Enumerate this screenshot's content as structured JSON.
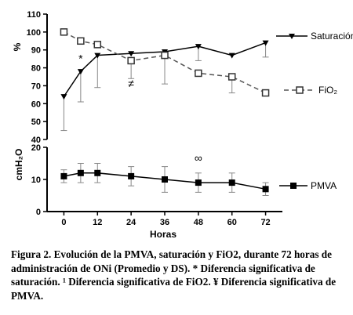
{
  "chart_data": [
    {
      "type": "line",
      "ylabel": "%",
      "ylim": [
        40,
        110
      ],
      "yticks": [
        40,
        50,
        60,
        70,
        80,
        90,
        100,
        110
      ],
      "xticks": [
        0,
        12,
        24,
        36,
        48,
        60,
        72
      ],
      "xlim": [
        -6,
        78
      ],
      "grid": false,
      "legend_position": "right",
      "series": [
        {
          "name": "Saturación",
          "marker": "triangle-down",
          "line": "solid",
          "x": [
            0,
            6,
            12,
            24,
            36,
            48,
            60,
            72
          ],
          "y": [
            64,
            78,
            87,
            88,
            89,
            92,
            87,
            94
          ],
          "err": [
            19,
            17,
            18,
            0,
            0,
            8,
            0,
            8
          ],
          "err_direction": "down"
        },
        {
          "name": "FiO₂",
          "marker": "square-open",
          "line": "dashed",
          "x": [
            0,
            6,
            12,
            24,
            36,
            48,
            60,
            72
          ],
          "y": [
            100,
            95,
            93,
            84,
            87,
            77,
            75,
            66
          ],
          "err": [
            0,
            0,
            0,
            10,
            16,
            0,
            9,
            0
          ],
          "err_direction": "down"
        }
      ],
      "annotations": [
        {
          "text": "*",
          "x": 6,
          "y": 83
        },
        {
          "text": "≠",
          "x": 24,
          "y": 69
        }
      ]
    },
    {
      "type": "line",
      "ylabel": "cmH₂O",
      "ylim": [
        0,
        20
      ],
      "yticks": [
        0,
        10,
        20
      ],
      "xticks": [
        0,
        12,
        24,
        36,
        48,
        60,
        72
      ],
      "xlim": [
        -6,
        78
      ],
      "xlabel": "Horas",
      "grid": false,
      "legend_position": "right",
      "series": [
        {
          "name": "PMVA",
          "marker": "square-filled",
          "line": "solid",
          "x": [
            0,
            6,
            12,
            24,
            36,
            48,
            60,
            72
          ],
          "y": [
            11,
            12,
            12,
            11,
            10,
            9,
            9,
            7
          ],
          "err": [
            2,
            3,
            3,
            3,
            4,
            3,
            3,
            2
          ],
          "err_direction": "both"
        }
      ],
      "annotations": [
        {
          "text": "∞",
          "x": 48,
          "y": 15.5
        }
      ]
    }
  ],
  "caption": "Figura 2. Evolución de la PMVA, saturación y FiO2, durante 72 horas de administración de ONi (Promedio y DS). * Diferencia significativa de saturación. ¹ Diferencia significativa de FiO2. ¥ Diferencia significativa de PMVA."
}
